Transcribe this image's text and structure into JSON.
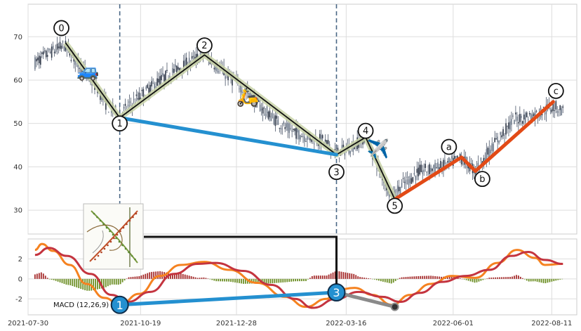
{
  "chart_data": {
    "type": "line",
    "subtype": "candlestick-with-elliott-wave-annotations",
    "title": "",
    "xlabel": "",
    "ylabel": "",
    "x_tick_labels": [
      "2021-07-30",
      "2021-10-19",
      "2021-12-28",
      "2022-03-16",
      "2022-06-01",
      "2022-08-11"
    ],
    "x_range_days": [
      0,
      395
    ],
    "price_panel": {
      "ylim": [
        24.5,
        77.5
      ],
      "y_ticks": [
        30,
        40,
        50,
        60,
        70
      ],
      "grid": true,
      "price_path": [
        {
          "day": 5,
          "price": 64
        },
        {
          "day": 14,
          "price": 66
        },
        {
          "day": 26,
          "price": 68
        },
        {
          "day": 38,
          "price": 63
        },
        {
          "day": 50,
          "price": 58
        },
        {
          "day": 57,
          "price": 54
        },
        {
          "day": 66,
          "price": 52
        },
        {
          "day": 80,
          "price": 56
        },
        {
          "day": 95,
          "price": 60
        },
        {
          "day": 110,
          "price": 63
        },
        {
          "day": 127,
          "price": 66
        },
        {
          "day": 140,
          "price": 62
        },
        {
          "day": 155,
          "price": 58
        },
        {
          "day": 170,
          "price": 53
        },
        {
          "day": 185,
          "price": 49
        },
        {
          "day": 200,
          "price": 47
        },
        {
          "day": 212,
          "price": 46
        },
        {
          "day": 222,
          "price": 43
        },
        {
          "day": 235,
          "price": 45
        },
        {
          "day": 243,
          "price": 47
        },
        {
          "day": 252,
          "price": 40
        },
        {
          "day": 262,
          "price": 33
        },
        {
          "day": 270,
          "price": 36
        },
        {
          "day": 282,
          "price": 39
        },
        {
          "day": 298,
          "price": 40
        },
        {
          "day": 312,
          "price": 42
        },
        {
          "day": 322,
          "price": 39
        },
        {
          "day": 335,
          "price": 45
        },
        {
          "day": 350,
          "price": 51
        },
        {
          "day": 365,
          "price": 52
        },
        {
          "day": 378,
          "price": 54
        },
        {
          "day": 385,
          "price": 53
        }
      ],
      "wave_points": [
        {
          "label": "0",
          "day": 27,
          "price": 68.6
        },
        {
          "label": "1",
          "day": 66,
          "price": 51.3
        },
        {
          "label": "2",
          "day": 127,
          "price": 65.8
        },
        {
          "label": "3",
          "day": 222,
          "price": 42.8
        },
        {
          "label": "4",
          "day": 243,
          "price": 46.8
        },
        {
          "label": "5",
          "day": 264,
          "price": 32.5
        },
        {
          "label": "a",
          "day": 312,
          "price": 42.2
        },
        {
          "label": "b",
          "day": 322,
          "price": 39.0
        },
        {
          "label": "c",
          "day": 378,
          "price": 55.0
        }
      ],
      "wave_label_offsets": [
        {
          "label": "0",
          "day": 24,
          "price": 72.0
        },
        {
          "label": "1",
          "day": 66,
          "price": 50.0
        },
        {
          "label": "2",
          "day": 127,
          "price": 68.0
        },
        {
          "label": "3",
          "day": 222,
          "price": 38.8
        },
        {
          "label": "4",
          "day": 243,
          "price": 48.3
        },
        {
          "label": "5",
          "day": 264,
          "price": 31.0
        },
        {
          "label": "a",
          "day": 303,
          "price": 44.6
        },
        {
          "label": "b",
          "day": 327,
          "price": 37.2
        },
        {
          "label": "c",
          "day": 380,
          "price": 57.5
        }
      ],
      "divergence_line": {
        "from_day": 66,
        "from_price": 51.3,
        "to_day": 222,
        "to_price": 42.8,
        "color": "#2490d0"
      },
      "corrective_line": {
        "days": [
          264,
          312,
          322,
          378
        ],
        "prices": [
          32.5,
          42.2,
          39.0,
          55.0
        ],
        "color": "#e24a16"
      },
      "vertical_markers_days": [
        66,
        222
      ],
      "icons": [
        {
          "name": "car-icon",
          "glyph": "🚙",
          "day": 43,
          "price": 62
        },
        {
          "name": "scooter-icon",
          "glyph": "🛵",
          "day": 158,
          "price": 56
        },
        {
          "name": "airplane-icon",
          "glyph": "✈️",
          "day": 252,
          "price": 44
        }
      ]
    },
    "macd_panel": {
      "label": "MACD (12,26,9)",
      "ylim": [
        -3.6,
        4.0
      ],
      "y_ticks": [
        -2,
        0,
        2
      ],
      "grid": true,
      "macd_line": [
        {
          "day": 5,
          "value": 2.9
        },
        {
          "day": 10,
          "value": 3.5
        },
        {
          "day": 18,
          "value": 2.8
        },
        {
          "day": 30,
          "value": 1.4
        },
        {
          "day": 42,
          "value": -0.5
        },
        {
          "day": 55,
          "value": -1.9
        },
        {
          "day": 66,
          "value": -2.6
        },
        {
          "day": 80,
          "value": -1.5
        },
        {
          "day": 95,
          "value": 0.3
        },
        {
          "day": 110,
          "value": 1.4
        },
        {
          "day": 127,
          "value": 1.7
        },
        {
          "day": 145,
          "value": 0.9
        },
        {
          "day": 165,
          "value": -0.4
        },
        {
          "day": 185,
          "value": -1.8
        },
        {
          "day": 200,
          "value": -2.8
        },
        {
          "day": 215,
          "value": -2.0
        },
        {
          "day": 222,
          "value": -1.1
        },
        {
          "day": 235,
          "value": -0.9
        },
        {
          "day": 248,
          "value": -1.6
        },
        {
          "day": 262,
          "value": -2.6
        },
        {
          "day": 275,
          "value": -1.6
        },
        {
          "day": 290,
          "value": -0.5
        },
        {
          "day": 305,
          "value": 0.3
        },
        {
          "day": 322,
          "value": 0.1
        },
        {
          "day": 338,
          "value": 1.6
        },
        {
          "day": 352,
          "value": 2.9
        },
        {
          "day": 365,
          "value": 2.1
        },
        {
          "day": 372,
          "value": 1.4
        },
        {
          "day": 385,
          "value": 1.5
        }
      ],
      "signal_line": [
        {
          "day": 5,
          "value": 2.4
        },
        {
          "day": 15,
          "value": 3.1
        },
        {
          "day": 28,
          "value": 2.3
        },
        {
          "day": 45,
          "value": 0.5
        },
        {
          "day": 60,
          "value": -1.6
        },
        {
          "day": 72,
          "value": -2.3
        },
        {
          "day": 88,
          "value": -1.3
        },
        {
          "day": 105,
          "value": 0.5
        },
        {
          "day": 122,
          "value": 1.5
        },
        {
          "day": 135,
          "value": 1.6
        },
        {
          "day": 155,
          "value": 0.8
        },
        {
          "day": 175,
          "value": -0.6
        },
        {
          "day": 192,
          "value": -2.0
        },
        {
          "day": 205,
          "value": -2.9
        },
        {
          "day": 222,
          "value": -2.0
        },
        {
          "day": 238,
          "value": -1.3
        },
        {
          "day": 255,
          "value": -1.8
        },
        {
          "day": 268,
          "value": -2.3
        },
        {
          "day": 282,
          "value": -1.4
        },
        {
          "day": 298,
          "value": -0.3
        },
        {
          "day": 315,
          "value": 0.3
        },
        {
          "day": 332,
          "value": 0.9
        },
        {
          "day": 348,
          "value": 2.3
        },
        {
          "day": 360,
          "value": 2.7
        },
        {
          "day": 372,
          "value": 1.9
        },
        {
          "day": 385,
          "value": 1.5
        }
      ],
      "histogram_positive_color": "#a52a2a",
      "histogram_negative_color": "#6b8e23",
      "macd_color": "#f58220",
      "signal_color": "#c4343f",
      "divergence_points": [
        {
          "label": "1",
          "day": 66,
          "value": -2.6
        },
        {
          "label": "3",
          "day": 222,
          "value": -1.35
        }
      ],
      "divergence_end": {
        "day": 264,
        "value": -2.8
      },
      "divergence_connector_color": "#111111"
    },
    "inset_image": {
      "name": "fibonacci-spiral-thumbnail"
    }
  }
}
